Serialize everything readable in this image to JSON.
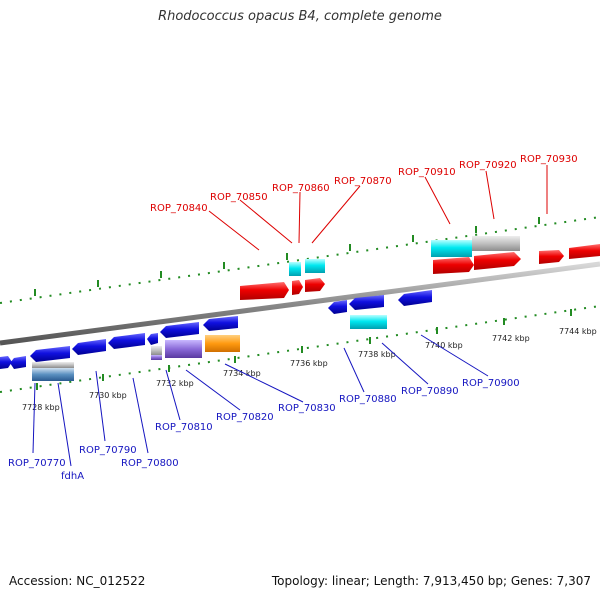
{
  "title": "Rhodococcus opacus B4, complete genome",
  "footer": {
    "accession": "Accession: NC_012522",
    "summary": "Topology: linear; Length: 7,913,450 bp; Genes: 7,307"
  },
  "colors": {
    "top_label": "#dd0000",
    "bottom_label": "#1515c0",
    "tick": "#228b22",
    "backbone": "#888888"
  },
  "scale_labels": [
    "7728 kbp",
    "7730 kbp",
    "7732 kbp",
    "7734 kbp",
    "7736 kbp",
    "7738 kbp",
    "7740 kbp",
    "7742 kbp",
    "7744 kbp"
  ],
  "top_genes": [
    "ROP_70840",
    "ROP_70850",
    "ROP_70860",
    "ROP_70870",
    "ROP_70910",
    "ROP_70920",
    "ROP_70930"
  ],
  "bottom_genes": [
    "ROP_70770",
    "fdhA",
    "ROP_70790",
    "ROP_70800",
    "ROP_70810",
    "ROP_70820",
    "ROP_70830",
    "ROP_70880",
    "ROP_70890",
    "ROP_70900"
  ]
}
